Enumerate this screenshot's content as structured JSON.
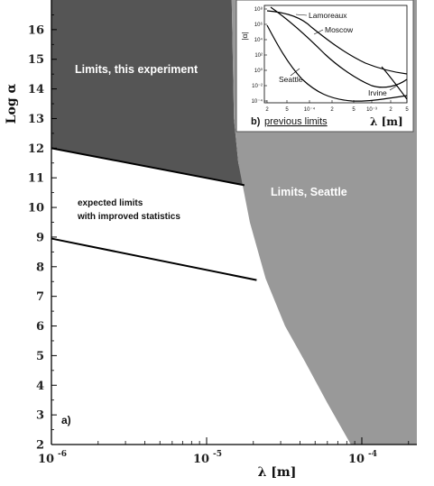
{
  "chart_data": {
    "type": "area",
    "ylabel": "Log α",
    "xlabel": "λ [m]",
    "ylim": [
      2,
      17
    ],
    "x_scale": "log",
    "xlim": [
      1e-06,
      0.0002
    ],
    "y_ticks": [
      "2",
      "3",
      "4",
      "5",
      "6",
      "7",
      "8",
      "9",
      "10",
      "11",
      "12",
      "13",
      "14",
      "15",
      "16"
    ],
    "x_ticks": [
      {
        "base": "10",
        "exp": "-6"
      },
      {
        "base": "10",
        "exp": "-5"
      },
      {
        "base": "10",
        "exp": "-4"
      }
    ],
    "panel_label": "a)",
    "series": [
      {
        "name": "Limits, this experiment",
        "color": "#555555",
        "line": [
          [
            1e-06,
            12.0
          ],
          [
            1.75e-05,
            10.75
          ]
        ]
      },
      {
        "name": "expected limits with improved statistics",
        "line": [
          [
            1e-06,
            8.95
          ],
          [
            2.1e-05,
            7.55
          ]
        ]
      },
      {
        "name": "Limits, Seattle",
        "color": "#999999",
        "boundary": [
          [
            1.45e-05,
            17
          ],
          [
            1.5e-05,
            13
          ],
          [
            1.6e-05,
            11.5
          ],
          [
            1.9e-05,
            9.5
          ],
          [
            2.4e-05,
            7.6
          ],
          [
            3.2e-05,
            6.0
          ],
          [
            4.3e-05,
            4.8
          ],
          [
            6e-05,
            3.4
          ],
          [
            8.5e-05,
            2.0
          ]
        ]
      }
    ],
    "region_labels": {
      "this_experiment": "Limits, this experiment",
      "expected_line1": "expected limits",
      "expected_line2": "with improved statistics",
      "seattle": "Limits, Seattle"
    }
  },
  "inset": {
    "caption_letter": "b)",
    "caption_text": "previous limits",
    "ylabel": "|α|",
    "xlabel": "λ [m]",
    "y_ticks": [
      "10⁸",
      "10⁶",
      "10⁴",
      "10²",
      "10⁰",
      "10⁻²",
      "10⁻⁴"
    ],
    "x_ticks": [
      "2",
      "5",
      "10⁻⁴",
      "2",
      "5",
      "10⁻³",
      "2",
      "5"
    ],
    "curve_labels": [
      "Lamoreaux",
      "Moscow",
      "Seattle",
      "Irvine"
    ]
  }
}
